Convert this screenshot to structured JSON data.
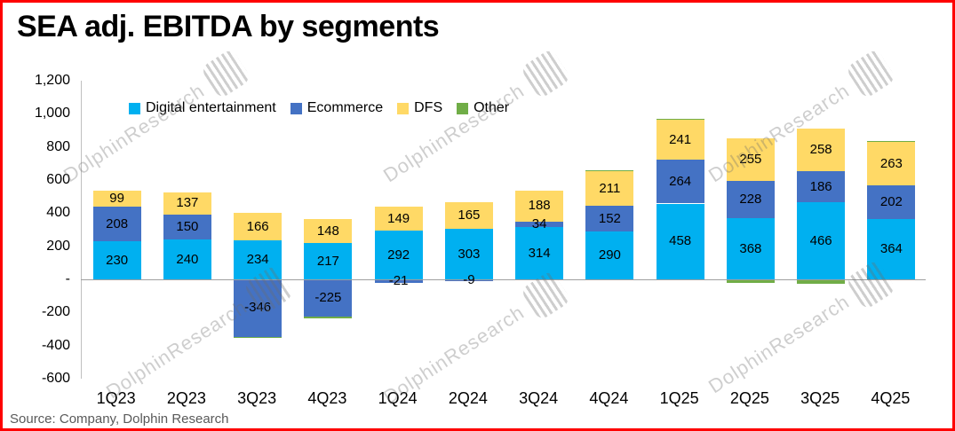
{
  "title": "SEA adj. EBITDA by segments",
  "source": "Source: Company, Dolphin Research",
  "watermark": {
    "text": "DolphinResearch"
  },
  "chart_data": {
    "type": "bar",
    "stacked": true,
    "title": "SEA adj. EBITDA by segments",
    "categories": [
      "1Q23",
      "2Q23",
      "3Q23",
      "4Q23",
      "1Q24",
      "2Q24",
      "3Q24",
      "4Q24",
      "1Q25",
      "2Q25",
      "3Q25",
      "4Q25"
    ],
    "series": [
      {
        "name": "Digital entertainment",
        "color": "#00B0F0",
        "labeled": true,
        "values": [
          230,
          240,
          234,
          217,
          292,
          303,
          314,
          290,
          458,
          368,
          466,
          364
        ]
      },
      {
        "name": "Ecommerce",
        "color": "#4472C4",
        "labeled": true,
        "values": [
          208,
          150,
          -346,
          -225,
          -21,
          -9,
          34,
          152,
          264,
          228,
          186,
          202
        ]
      },
      {
        "name": "DFS",
        "color": "#FFD966",
        "labeled": true,
        "values": [
          99,
          137,
          166,
          148,
          149,
          165,
          188,
          211,
          241,
          255,
          258,
          263
        ]
      },
      {
        "name": "Other",
        "color": "#70AD47",
        "labeled": false,
        "values": [
          0,
          0,
          -10,
          -12,
          0,
          0,
          0,
          5,
          5,
          -20,
          -25,
          5
        ]
      }
    ],
    "ylim": [
      -600,
      1200
    ],
    "yticks": {
      "values": [
        1200,
        1000,
        800,
        600,
        400,
        200,
        0,
        -200,
        -400,
        -600
      ],
      "labels": [
        "1,200",
        "1,000",
        "800",
        "600",
        "400",
        "200",
        "-",
        "-200",
        "-400",
        "-600"
      ]
    },
    "legend_position": "top",
    "grid": false
  }
}
